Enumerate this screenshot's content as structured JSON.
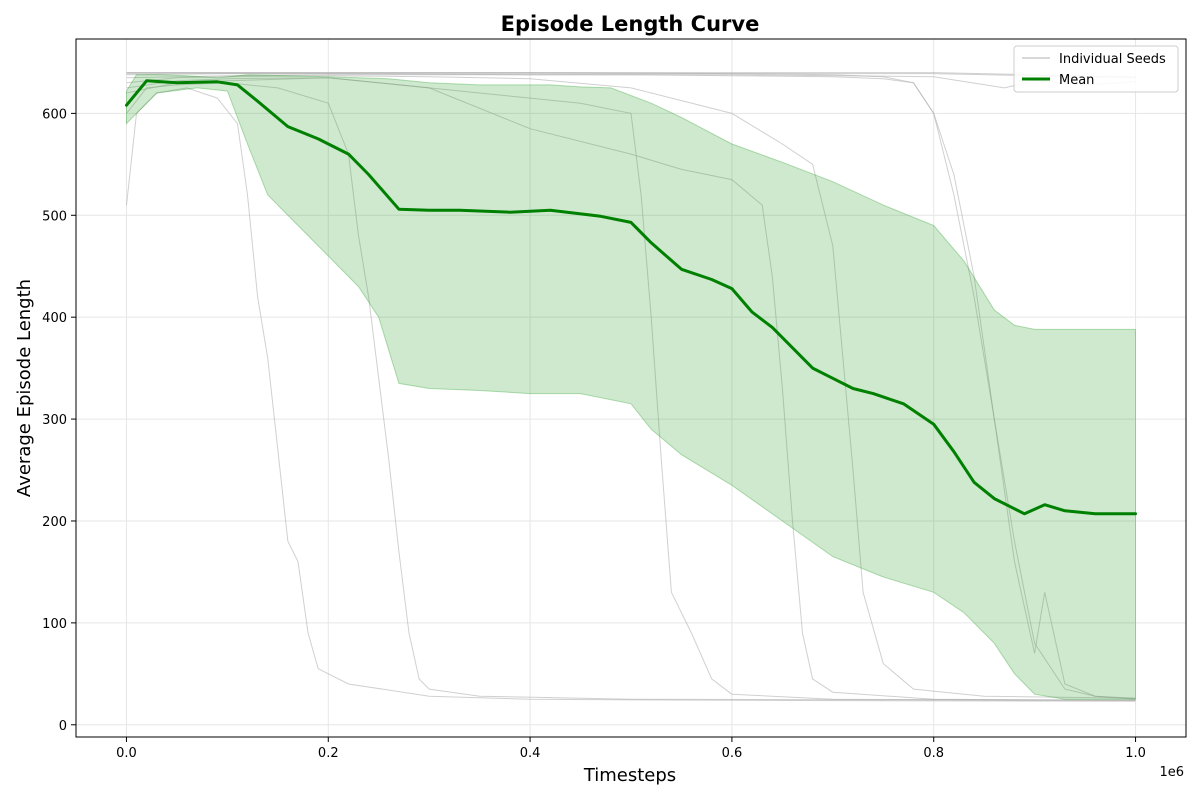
{
  "chart_data": {
    "type": "line",
    "title": "Episode Length Curve",
    "xlabel": "Timesteps",
    "ylabel": "Average Episode Length",
    "x_multiplier_label": "1e6",
    "xlim": [
      -0.05,
      1.05
    ],
    "ylim": [
      -12,
      673
    ],
    "xticks": [
      0.0,
      0.2,
      0.4,
      0.6,
      0.8,
      1.0
    ],
    "xtick_labels": [
      "0.0",
      "0.2",
      "0.4",
      "0.6",
      "0.8",
      "1.0"
    ],
    "yticks": [
      0,
      100,
      200,
      300,
      400,
      500,
      600
    ],
    "ytick_labels": [
      "0",
      "100",
      "200",
      "300",
      "400",
      "500",
      "600"
    ],
    "grid": true,
    "legend_position": "top-right",
    "legend": [
      {
        "label": "Individual Seeds",
        "color": "#b0b0b0"
      },
      {
        "label": "Mean",
        "color": "#008000"
      }
    ],
    "colors": {
      "mean": "#008000",
      "band": "#2ca02c",
      "seeds": "#a9a9a9"
    },
    "series": [
      {
        "name": "Mean",
        "x": [
          0.0,
          0.02,
          0.05,
          0.09,
          0.11,
          0.13,
          0.16,
          0.19,
          0.22,
          0.24,
          0.27,
          0.3,
          0.33,
          0.38,
          0.42,
          0.47,
          0.5,
          0.52,
          0.55,
          0.58,
          0.6,
          0.62,
          0.64,
          0.66,
          0.68,
          0.7,
          0.72,
          0.74,
          0.77,
          0.8,
          0.82,
          0.84,
          0.86,
          0.89,
          0.91,
          0.93,
          0.96,
          1.0
        ],
        "y": [
          608,
          632,
          630,
          631,
          628,
          612,
          587,
          575,
          560,
          540,
          506,
          505,
          505,
          503,
          505,
          499,
          493,
          473,
          447,
          437,
          428,
          405,
          390,
          370,
          350,
          340,
          330,
          325,
          315,
          295,
          268,
          238,
          222,
          207,
          216,
          210,
          207,
          207
        ]
      },
      {
        "name": "Std band upper",
        "x": [
          0.0,
          0.01,
          0.03,
          0.06,
          0.09,
          0.12,
          0.2,
          0.26,
          0.3,
          0.35,
          0.38,
          0.42,
          0.45,
          0.48,
          0.52,
          0.55,
          0.6,
          0.65,
          0.7,
          0.75,
          0.8,
          0.83,
          0.86,
          0.88,
          0.9,
          0.93,
          0.96,
          1.0
        ],
        "y": [
          622,
          638,
          638,
          637,
          635,
          638,
          636,
          634,
          630,
          628,
          628,
          628,
          626,
          625,
          610,
          596,
          570,
          552,
          533,
          510,
          490,
          455,
          407,
          392,
          388,
          388,
          388,
          388
        ]
      },
      {
        "name": "Std band lower",
        "x": [
          0.0,
          0.03,
          0.07,
          0.1,
          0.12,
          0.14,
          0.17,
          0.2,
          0.23,
          0.25,
          0.27,
          0.3,
          0.35,
          0.4,
          0.45,
          0.5,
          0.52,
          0.55,
          0.6,
          0.65,
          0.7,
          0.75,
          0.8,
          0.83,
          0.86,
          0.88,
          0.9,
          0.93,
          0.96,
          1.0
        ],
        "y": [
          590,
          620,
          625,
          622,
          570,
          520,
          490,
          460,
          430,
          400,
          335,
          330,
          328,
          325,
          325,
          315,
          290,
          265,
          235,
          200,
          165,
          145,
          130,
          110,
          80,
          50,
          30,
          25,
          25,
          25
        ]
      },
      {
        "name": "Seed 1",
        "x": [
          0.0,
          0.01,
          0.03,
          0.06,
          0.09,
          0.11,
          0.12,
          0.13,
          0.14,
          0.15,
          0.16,
          0.17,
          0.18,
          0.19,
          0.2,
          0.22,
          0.3,
          0.4,
          0.6,
          1.0
        ],
        "y": [
          510,
          600,
          620,
          625,
          615,
          590,
          520,
          420,
          360,
          270,
          180,
          160,
          90,
          55,
          50,
          40,
          28,
          25,
          24,
          23
        ]
      },
      {
        "name": "Seed 2",
        "x": [
          0.0,
          0.02,
          0.05,
          0.1,
          0.15,
          0.2,
          0.22,
          0.23,
          0.24,
          0.25,
          0.26,
          0.27,
          0.28,
          0.29,
          0.3,
          0.35,
          0.5,
          1.0
        ],
        "y": [
          600,
          625,
          628,
          630,
          625,
          610,
          560,
          480,
          420,
          340,
          260,
          170,
          90,
          45,
          35,
          28,
          25,
          24
        ]
      },
      {
        "name": "Seed 3",
        "x": [
          0.0,
          0.05,
          0.1,
          0.2,
          0.3,
          0.4,
          0.45,
          0.5,
          0.51,
          0.52,
          0.53,
          0.54,
          0.56,
          0.58,
          0.6,
          0.7,
          1.0
        ],
        "y": [
          620,
          630,
          632,
          635,
          625,
          615,
          610,
          600,
          520,
          400,
          260,
          130,
          90,
          45,
          30,
          25,
          24
        ]
      },
      {
        "name": "Seed 4",
        "x": [
          0.0,
          0.05,
          0.1,
          0.2,
          0.3,
          0.4,
          0.5,
          0.55,
          0.6,
          0.63,
          0.64,
          0.65,
          0.66,
          0.67,
          0.68,
          0.7,
          0.8,
          1.0
        ],
        "y": [
          625,
          632,
          634,
          635,
          625,
          585,
          560,
          545,
          535,
          510,
          440,
          330,
          200,
          90,
          45,
          32,
          25,
          24
        ]
      },
      {
        "name": "Seed 5",
        "x": [
          0.0,
          0.05,
          0.1,
          0.2,
          0.3,
          0.4,
          0.5,
          0.6,
          0.65,
          0.68,
          0.7,
          0.71,
          0.72,
          0.73,
          0.75,
          0.78,
          0.85,
          1.0
        ],
        "y": [
          630,
          635,
          636,
          637,
          636,
          634,
          625,
          600,
          570,
          550,
          470,
          360,
          250,
          130,
          60,
          35,
          28,
          26
        ]
      },
      {
        "name": "Seed 6",
        "x": [
          0.0,
          0.1,
          0.2,
          0.3,
          0.4,
          0.5,
          0.6,
          0.7,
          0.75,
          0.78,
          0.8,
          0.82,
          0.84,
          0.86,
          0.88,
          0.9,
          0.93,
          0.96,
          1.0
        ],
        "y": [
          635,
          637,
          638,
          638,
          638,
          638,
          637,
          636,
          634,
          630,
          600,
          520,
          420,
          300,
          180,
          80,
          35,
          28,
          26
        ]
      },
      {
        "name": "Seed 7",
        "x": [
          0.0,
          0.1,
          0.2,
          0.4,
          0.6,
          0.7,
          0.75,
          0.78,
          0.8,
          0.82,
          0.84,
          0.86,
          0.88,
          0.9,
          0.91,
          0.93,
          0.96,
          1.0
        ],
        "y": [
          638,
          639,
          639,
          639,
          639,
          638,
          636,
          630,
          600,
          540,
          440,
          300,
          160,
          70,
          130,
          40,
          28,
          25
        ]
      },
      {
        "name": "Seed 8",
        "x": [
          0.0,
          0.2,
          0.4,
          0.6,
          0.8,
          0.9,
          1.0
        ],
        "y": [
          640,
          640,
          640,
          640,
          640,
          638,
          635
        ]
      },
      {
        "name": "Seed 9",
        "x": [
          0.0,
          0.2,
          0.4,
          0.6,
          0.8,
          0.87,
          0.9,
          0.95,
          1.0
        ],
        "y": [
          639,
          639,
          638,
          638,
          636,
          625,
          632,
          628,
          631
        ]
      },
      {
        "name": "Seed 10",
        "x": [
          0.0,
          0.2,
          0.4,
          0.6,
          0.8,
          0.9,
          0.95,
          1.0
        ],
        "y": [
          640,
          640,
          640,
          639,
          639,
          637,
          636,
          636
        ]
      }
    ]
  }
}
